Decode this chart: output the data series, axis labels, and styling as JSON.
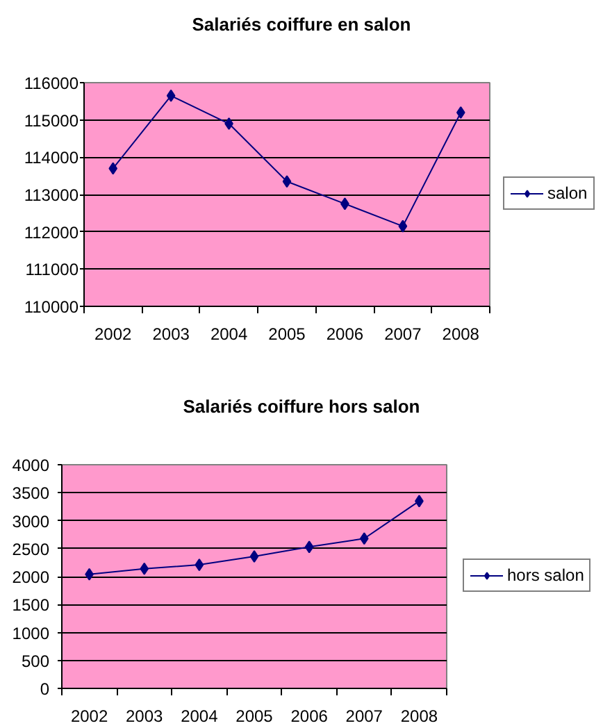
{
  "chart_data": [
    {
      "type": "line",
      "title": "Salariés coiffure en salon",
      "categories": [
        "2002",
        "2003",
        "2004",
        "2005",
        "2006",
        "2007",
        "2008"
      ],
      "series": [
        {
          "name": "salon",
          "color": "#000080",
          "values": [
            113700,
            115650,
            114900,
            113350,
            112750,
            112150,
            115200
          ]
        }
      ],
      "ylim": [
        110000,
        116000
      ],
      "yticks": [
        110000,
        111000,
        112000,
        113000,
        114000,
        115000,
        116000
      ],
      "grid": "y",
      "legend": "right",
      "marker": "diamond",
      "line_style": "solid"
    },
    {
      "type": "line",
      "title": "Salariés coiffure hors salon",
      "categories": [
        "2002",
        "2003",
        "2004",
        "2005",
        "2006",
        "2007",
        "2008"
      ],
      "series": [
        {
          "name": "hors salon",
          "color": "#000080",
          "values": [
            2040,
            2140,
            2210,
            2360,
            2530,
            2680,
            3350
          ]
        }
      ],
      "ylim": [
        0,
        4000
      ],
      "yticks": [
        0,
        500,
        1000,
        1500,
        2000,
        2500,
        3000,
        3500,
        4000
      ],
      "grid": "y",
      "legend": "right",
      "marker": "diamond",
      "line_style": "solid"
    }
  ]
}
